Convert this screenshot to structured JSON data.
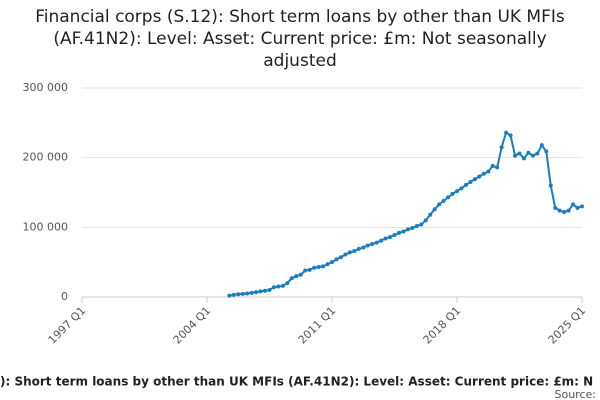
{
  "chart_data": {
    "type": "line",
    "title": "Financial corps (S.12): Short term loans by other than UK MFIs (AF.41N2): Level: Asset: Current price: £m: Not seasonally adjusted",
    "categories": [
      "1997 Q1",
      null,
      null,
      null,
      null,
      null,
      null,
      null,
      null,
      null,
      null,
      null,
      null,
      null,
      null,
      null,
      null,
      null,
      null,
      null,
      null,
      null,
      null,
      null,
      null,
      null,
      null,
      null,
      "2004 Q1",
      null,
      null,
      null,
      null,
      null,
      null,
      null,
      null,
      null,
      null,
      null,
      null,
      null,
      null,
      null,
      null,
      null,
      null,
      null,
      null,
      null,
      null,
      null,
      null,
      null,
      null,
      null,
      "2011 Q1",
      null,
      null,
      null,
      null,
      null,
      null,
      null,
      null,
      null,
      null,
      null,
      null,
      null,
      null,
      null,
      null,
      null,
      null,
      null,
      null,
      null,
      null,
      null,
      null,
      null,
      null,
      null,
      "2018 Q1",
      null,
      null,
      null,
      null,
      null,
      null,
      null,
      null,
      null,
      null,
      null,
      null,
      null,
      null,
      null,
      null,
      null,
      null,
      null,
      null,
      null,
      null,
      null,
      null,
      null,
      null,
      null,
      "2025 Q1"
    ],
    "values": [
      null,
      null,
      null,
      null,
      null,
      null,
      null,
      null,
      null,
      null,
      null,
      null,
      null,
      null,
      null,
      null,
      null,
      null,
      null,
      null,
      null,
      null,
      null,
      null,
      null,
      null,
      null,
      null,
      null,
      null,
      null,
      null,
      null,
      2000,
      3000,
      4000,
      4500,
      5000,
      6000,
      7000,
      8000,
      9000,
      10000,
      14000,
      15000,
      16000,
      20000,
      27000,
      30000,
      32000,
      38000,
      39000,
      42000,
      43000,
      44000,
      47000,
      50000,
      54000,
      57000,
      61000,
      64000,
      66000,
      69000,
      71000,
      74000,
      76000,
      78000,
      81000,
      84000,
      86000,
      89000,
      92000,
      94000,
      97000,
      99000,
      102000,
      104000,
      110000,
      118000,
      126000,
      133000,
      138000,
      143000,
      148000,
      152000,
      156000,
      161000,
      165000,
      169000,
      173000,
      177000,
      180000,
      188000,
      186000,
      215000,
      236000,
      232000,
      203000,
      206000,
      199000,
      207000,
      203000,
      206000,
      218000,
      209000,
      160000,
      128000,
      124000,
      122000,
      124000,
      133000,
      128000,
      130000
    ],
    "color": "#1a7dc0",
    "ylim": [
      0,
      300000
    ],
    "yticks": [
      0,
      {
        "value": 100000,
        "label": "100 000"
      },
      {
        "value": 200000,
        "label": "200 000"
      },
      {
        "value": 300000,
        "label": "300 000"
      }
    ],
    "grid": true,
    "footer_caption": "): Short term loans by other than UK MFIs (AF.41N2): Level: Asset: Current price: £m: N",
    "source": "Source:"
  }
}
